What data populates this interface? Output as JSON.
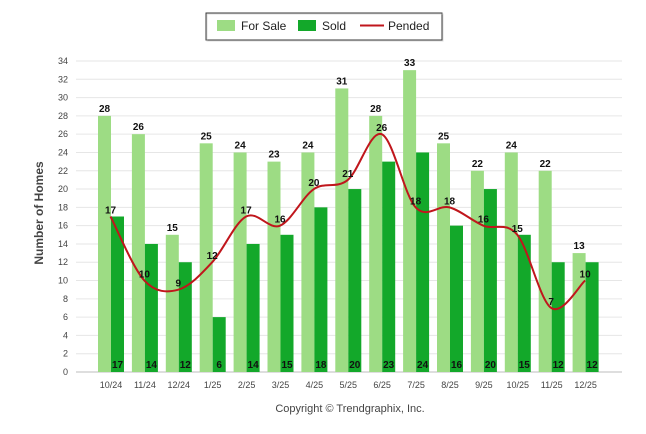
{
  "chart_data": {
    "type": "bar",
    "title": "",
    "xlabel": "",
    "ylabel": "Number of Homes",
    "ylim": [
      0,
      34
    ],
    "yticks": [
      0,
      2,
      4,
      6,
      8,
      10,
      12,
      14,
      16,
      18,
      20,
      22,
      24,
      26,
      28,
      30,
      32,
      34
    ],
    "categories": [
      "10/24",
      "11/24",
      "12/24",
      "1/25",
      "2/25",
      "3/25",
      "4/25",
      "5/25",
      "6/25",
      "7/25",
      "8/25",
      "9/25",
      "10/25",
      "11/25",
      "12/25"
    ],
    "series": [
      {
        "name": "For Sale",
        "kind": "bar",
        "color": "#9ddc84",
        "values": [
          28,
          26,
          15,
          25,
          24,
          23,
          24,
          31,
          28,
          33,
          25,
          22,
          24,
          22,
          13
        ]
      },
      {
        "name": "Sold",
        "kind": "bar",
        "color": "#13a82a",
        "values": [
          17,
          14,
          12,
          6,
          14,
          15,
          18,
          20,
          23,
          24,
          16,
          20,
          15,
          12,
          12
        ]
      },
      {
        "name": "Pended",
        "kind": "line",
        "color": "#c0161c",
        "values": [
          17,
          10,
          9,
          12,
          17,
          16,
          20,
          21,
          26,
          18,
          18,
          16,
          15,
          7,
          10
        ]
      }
    ],
    "legend_position": "top-center",
    "grid": true,
    "footer": "Copyright © Trendgraphix, Inc."
  }
}
